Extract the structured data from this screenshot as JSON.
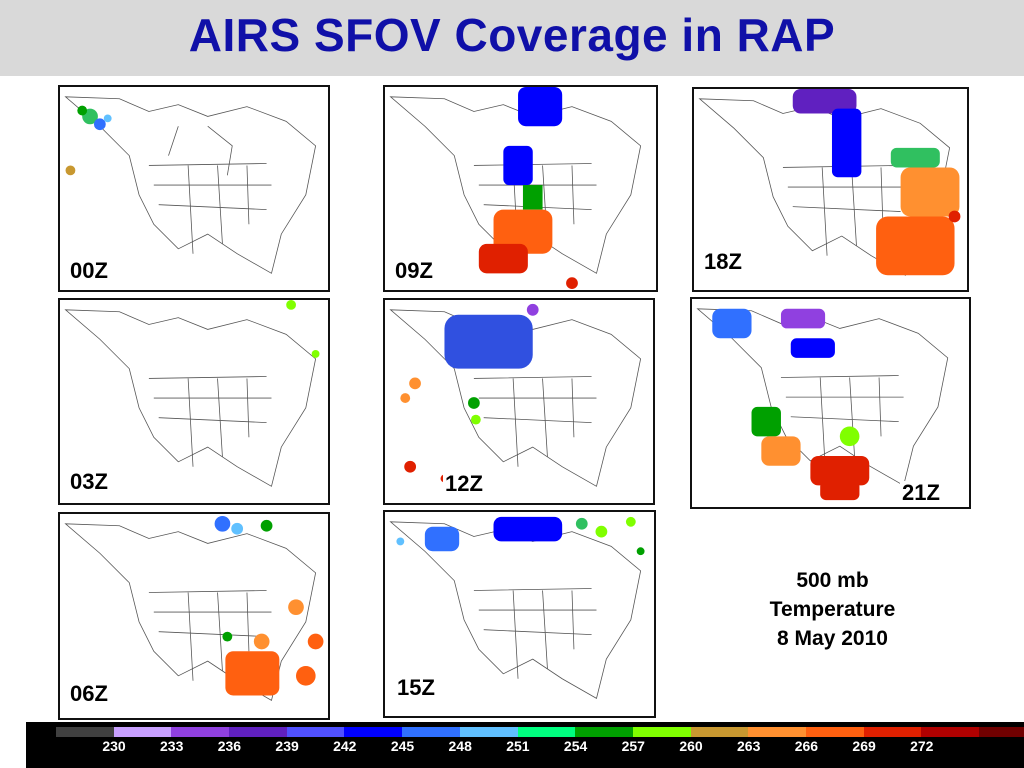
{
  "title": "AIRS SFOV Coverage in RAP",
  "panels": [
    {
      "label": "00Z"
    },
    {
      "label": "03Z"
    },
    {
      "label": "06Z"
    },
    {
      "label": "09Z"
    },
    {
      "label": "12Z"
    },
    {
      "label": "15Z"
    },
    {
      "label": "18Z"
    },
    {
      "label": "21Z"
    }
  ],
  "info": {
    "line1": "500 mb",
    "line2": "Temperature",
    "line3": "8 May 2010"
  },
  "colorbar": {
    "labels": [
      "230",
      "233",
      "236",
      "239",
      "242",
      "245",
      "248",
      "251",
      "254",
      "257",
      "260",
      "263",
      "266",
      "269",
      "272"
    ],
    "colors": [
      "#404040",
      "#c8a0ff",
      "#9040e0",
      "#6020c0",
      "#5050ff",
      "#0000ff",
      "#3070ff",
      "#60c0ff",
      "#00ff80",
      "#00a000",
      "#80ff00",
      "#c89830",
      "#ff9030",
      "#ff6010",
      "#e02000",
      "#b00000",
      "#700000"
    ]
  }
}
